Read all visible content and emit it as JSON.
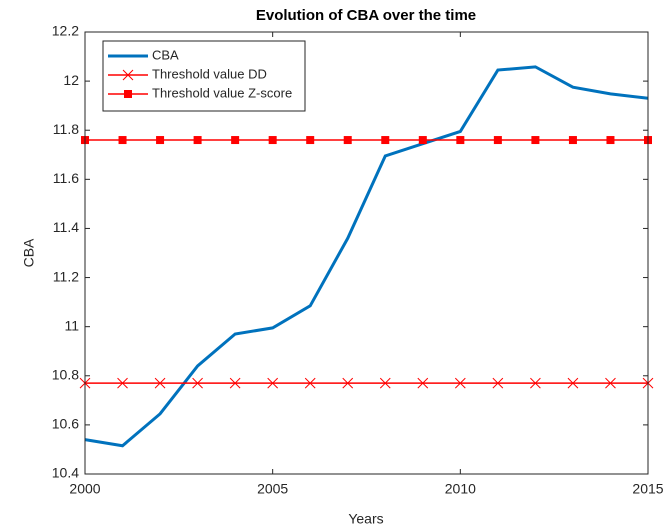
{
  "chart_data": {
    "type": "line",
    "title": "Evolution of CBA over the time",
    "x_label": "Years",
    "y_label": "CBA",
    "x": [
      2000,
      2001,
      2002,
      2003,
      2004,
      2005,
      2006,
      2007,
      2008,
      2009,
      2010,
      2011,
      2012,
      2013,
      2014,
      2015
    ],
    "series": [
      {
        "name": "CBA",
        "color": "#0072bd",
        "marker": "none",
        "values": [
          10.54,
          10.515,
          10.645,
          10.84,
          10.97,
          10.995,
          11.085,
          11.36,
          11.695,
          11.745,
          11.795,
          12.045,
          12.058,
          11.975,
          11.948,
          11.93
        ]
      },
      {
        "name": "Threshold value DD",
        "color": "#ff0000",
        "marker": "x",
        "values": [
          10.77,
          10.77,
          10.77,
          10.77,
          10.77,
          10.77,
          10.77,
          10.77,
          10.77,
          10.77,
          10.77,
          10.77,
          10.77,
          10.77,
          10.77,
          10.77
        ]
      },
      {
        "name": "Threshold value Z-score",
        "color": "#ff0000",
        "marker": "square",
        "values": [
          11.76,
          11.76,
          11.76,
          11.76,
          11.76,
          11.76,
          11.76,
          11.76,
          11.76,
          11.76,
          11.76,
          11.76,
          11.76,
          11.76,
          11.76,
          11.76
        ]
      }
    ],
    "xlim": [
      2000,
      2015
    ],
    "xticks": [
      2000,
      2005,
      2010,
      2015
    ],
    "ylim": [
      10.4,
      12.2
    ],
    "yticks": [
      10.4,
      10.6,
      10.8,
      11,
      11.2,
      11.4,
      11.6,
      11.8,
      12,
      12.2
    ],
    "grid": false,
    "legend": "top-left"
  }
}
